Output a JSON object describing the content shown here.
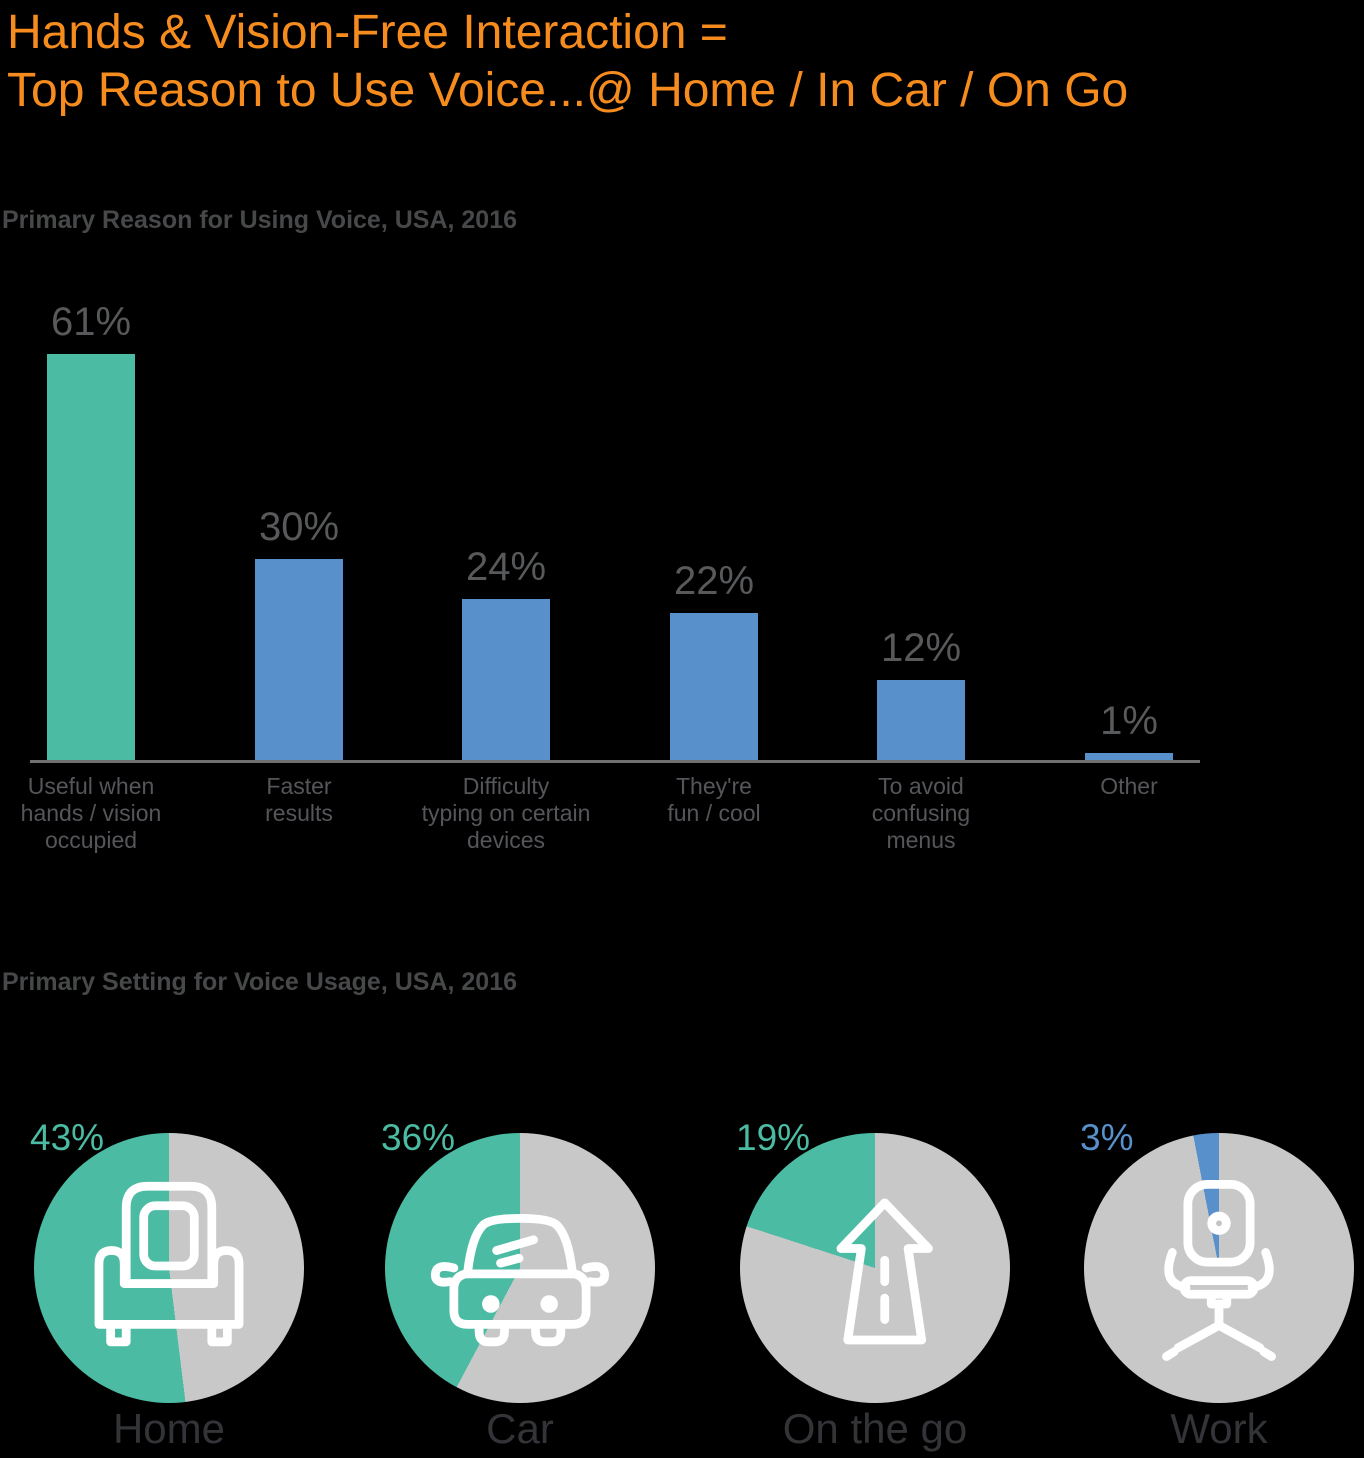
{
  "background": "#000000",
  "title": {
    "line1": "Hands & Vision-Free Interaction =",
    "line2": "Top Reason to Use Voice...@ Home / In Car / On Go",
    "color": "#F68B1E"
  },
  "reason_chart": {
    "heading": "Primary Reason for Using Voice, USA, 2016",
    "axis_color": "#6F7072",
    "value_label_color": "#58595B",
    "bars": [
      {
        "value": 61,
        "value_label": "61%",
        "color": "#4BBCA3",
        "label_lines": [
          "Useful when",
          "hands / vision",
          "occupied"
        ]
      },
      {
        "value": 30,
        "value_label": "30%",
        "color": "#5890CB",
        "label_lines": [
          "Faster",
          "results"
        ]
      },
      {
        "value": 24,
        "value_label": "24%",
        "color": "#5890CB",
        "label_lines": [
          "Difficulty",
          "typing on certain",
          "devices"
        ]
      },
      {
        "value": 22,
        "value_label": "22%",
        "color": "#5890CB",
        "label_lines": [
          "They're",
          "fun / cool"
        ]
      },
      {
        "value": 12,
        "value_label": "12%",
        "color": "#5890CB",
        "label_lines": [
          "To avoid",
          "confusing",
          "menus"
        ]
      },
      {
        "value": 1,
        "value_label": "1%",
        "color": "#5890CB",
        "label_lines": [
          "Other"
        ]
      }
    ]
  },
  "setting_section": {
    "heading": "Primary Setting for Voice Usage, USA, 2016",
    "rest_color": "#C8C8C9",
    "icon_color": "#FFFFFF",
    "pies": [
      {
        "name": "Home",
        "value": 43,
        "value_label": "43%",
        "slice_color": "#4BBCA3",
        "icon": "armchair-icon"
      },
      {
        "name": "Car",
        "value": 36,
        "value_label": "36%",
        "slice_color": "#4BBCA3",
        "icon": "car-icon"
      },
      {
        "name": "On the go",
        "value": 19,
        "value_label": "19%",
        "slice_color": "#4BBCA3",
        "icon": "road-arrow-icon"
      },
      {
        "name": "Work",
        "value": 3,
        "value_label": "3%",
        "slice_color": "#5890CB",
        "icon": "office-chair-icon"
      }
    ]
  },
  "chart_data": [
    {
      "type": "bar",
      "title": "Primary Reason for Using Voice, USA, 2016",
      "categories": [
        "Useful when hands / vision occupied",
        "Faster results",
        "Difficulty typing on certain devices",
        "They're fun / cool",
        "To avoid confusing menus",
        "Other"
      ],
      "values": [
        61,
        30,
        24,
        22,
        12,
        1
      ],
      "data_labels": [
        "61%",
        "30%",
        "24%",
        "22%",
        "12%",
        "1%"
      ],
      "unit": "%",
      "xlabel": "",
      "ylabel": "",
      "ylim": [
        0,
        65
      ],
      "grid": false,
      "legend": false,
      "bar_colors": [
        "#4BBCA3",
        "#5890CB",
        "#5890CB",
        "#5890CB",
        "#5890CB",
        "#5890CB"
      ]
    },
    {
      "type": "pie",
      "title": "Primary Setting for Voice Usage, USA, 2016",
      "categories": [
        "Home",
        "Car",
        "On the go",
        "Work"
      ],
      "values": [
        43,
        36,
        19,
        3
      ],
      "unit": "%",
      "slice_colors": [
        "#4BBCA3",
        "#4BBCA3",
        "#4BBCA3",
        "#5890CB"
      ],
      "remainder_color": "#C8C8C9",
      "layout": "four separate single-slice pies, slice sweeps counterclockwise from 12 o'clock, white icon inside each"
    }
  ]
}
